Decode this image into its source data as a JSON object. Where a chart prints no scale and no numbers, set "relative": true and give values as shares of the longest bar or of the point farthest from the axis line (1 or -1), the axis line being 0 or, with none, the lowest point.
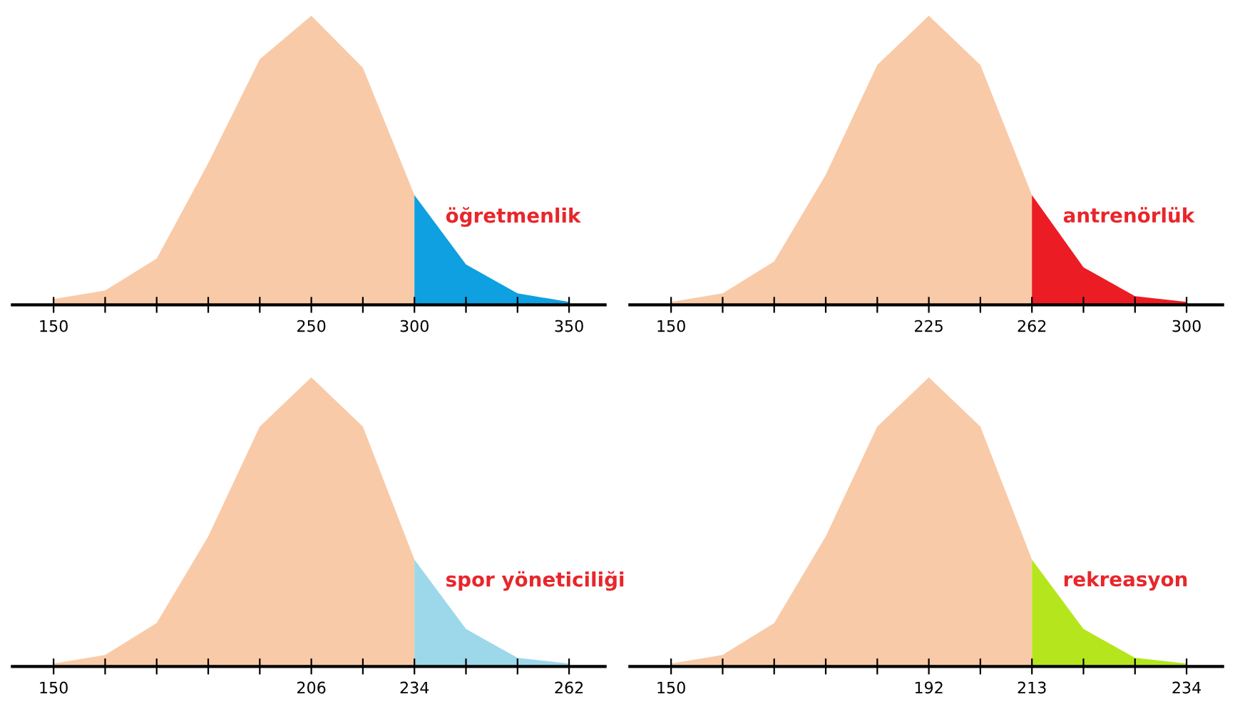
{
  "chart_data": [
    {
      "type": "area",
      "relative": true,
      "legend": false,
      "grid": false,
      "categories": [
        "150",
        null,
        null,
        null,
        null,
        "250",
        null,
        "300",
        null,
        null,
        "350"
      ],
      "series": [
        {
          "color": "#f9caa7",
          "values": [
            0.02,
            0.05,
            0.16,
            0.49,
            0.85,
            1,
            0.82,
            0.38,
            null,
            null,
            null
          ]
        },
        {
          "name": "öğretmenlik",
          "color": "#0ea0e0",
          "values": [
            null,
            null,
            null,
            null,
            null,
            null,
            null,
            0.38,
            0.14,
            0.04,
            0.01
          ]
        }
      ]
    },
    {
      "type": "area",
      "relative": true,
      "legend": false,
      "grid": false,
      "categories": [
        "150",
        null,
        null,
        null,
        null,
        "225",
        null,
        "262",
        null,
        null,
        "300"
      ],
      "series": [
        {
          "color": "#f9caa7",
          "values": [
            0.01,
            0.04,
            0.15,
            0.45,
            0.83,
            1,
            0.83,
            0.38,
            null,
            null,
            null
          ]
        },
        {
          "name": "antrenörlük",
          "color": "#ec1c24",
          "values": [
            null,
            null,
            null,
            null,
            null,
            null,
            null,
            0.38,
            0.13,
            0.03,
            0.01
          ]
        }
      ]
    },
    {
      "type": "area",
      "relative": true,
      "legend": false,
      "grid": false,
      "categories": [
        "150",
        null,
        null,
        null,
        null,
        "206",
        null,
        "234",
        null,
        null,
        "262"
      ],
      "series": [
        {
          "color": "#f9caa7",
          "values": [
            0.01,
            0.04,
            0.15,
            0.45,
            0.83,
            1,
            0.83,
            0.37,
            null,
            null,
            null
          ]
        },
        {
          "name": "spor yöneticiliği",
          "color": "#9dd8ea",
          "values": [
            null,
            null,
            null,
            null,
            null,
            null,
            null,
            0.37,
            0.13,
            0.03,
            0.01
          ]
        }
      ]
    },
    {
      "type": "area",
      "relative": true,
      "legend": false,
      "grid": false,
      "categories": [
        "150",
        null,
        null,
        null,
        null,
        "192",
        null,
        "213",
        null,
        null,
        "234"
      ],
      "series": [
        {
          "color": "#f9caa7",
          "values": [
            0.01,
            0.04,
            0.15,
            0.45,
            0.83,
            1,
            0.83,
            0.37,
            null,
            null,
            null
          ]
        },
        {
          "name": "rekreasyon",
          "color": "#b5e61d",
          "values": [
            null,
            null,
            null,
            null,
            null,
            null,
            null,
            0.37,
            0.13,
            0.03,
            0.01
          ]
        }
      ]
    }
  ]
}
